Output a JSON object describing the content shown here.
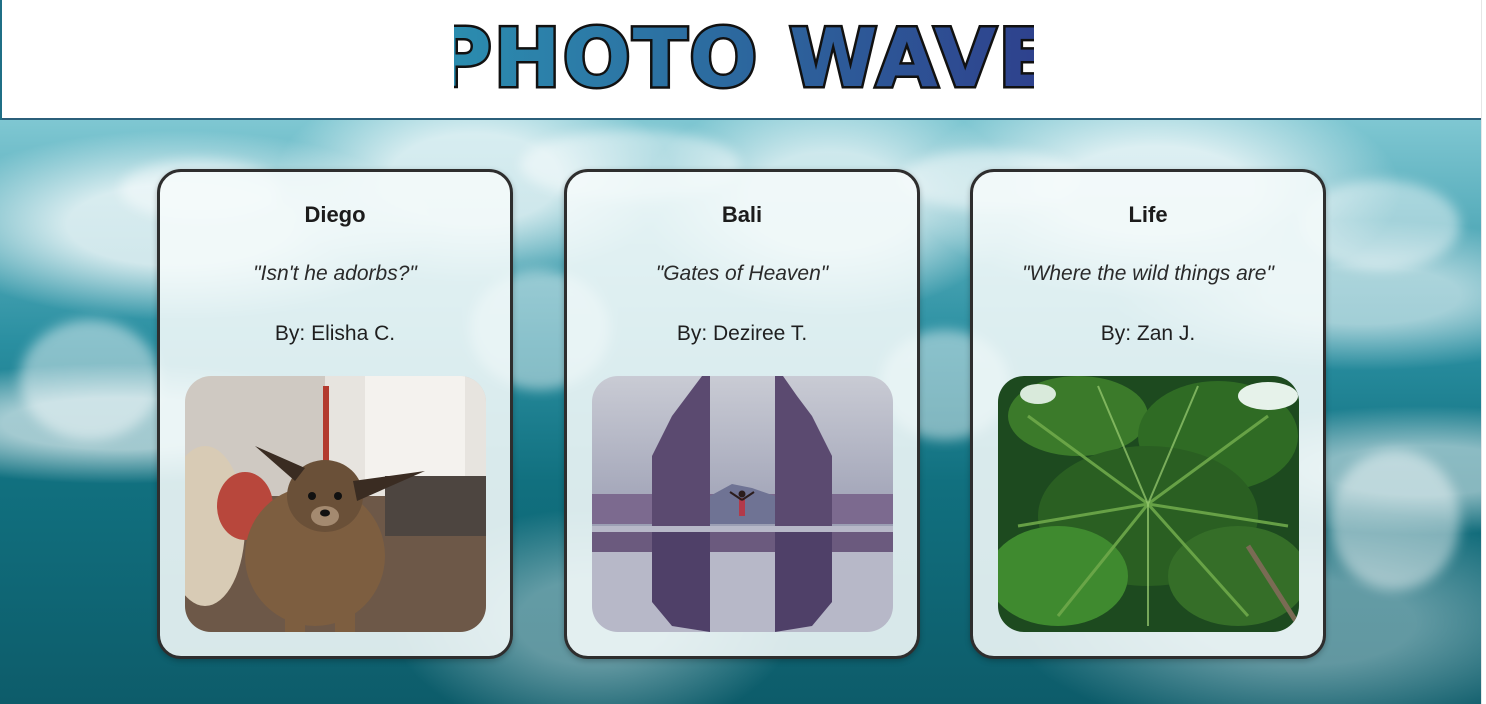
{
  "header": {
    "logo_text": "PHOTO WAVE",
    "logo_colors": {
      "start": "#2b8fb0",
      "end": "#2e3f8c",
      "outline": "#111111"
    }
  },
  "background": {
    "subject": "ocean waves aerial",
    "colors": [
      "#7fc7d2",
      "#2a8fa1",
      "#0d5c6a"
    ]
  },
  "cards": [
    {
      "title": "Diego",
      "quote": "\"Isn't he adorbs?\"",
      "author": "By: Elisha C.",
      "photo": "dog-photo"
    },
    {
      "title": "Bali",
      "quote": "\"Gates of Heaven\"",
      "author": "By: Deziree T.",
      "photo": "temple-gate-photo"
    },
    {
      "title": "Life",
      "quote": "\"Where the wild things are\"",
      "author": "By: Zan J.",
      "photo": "palm-trees-photo"
    }
  ]
}
